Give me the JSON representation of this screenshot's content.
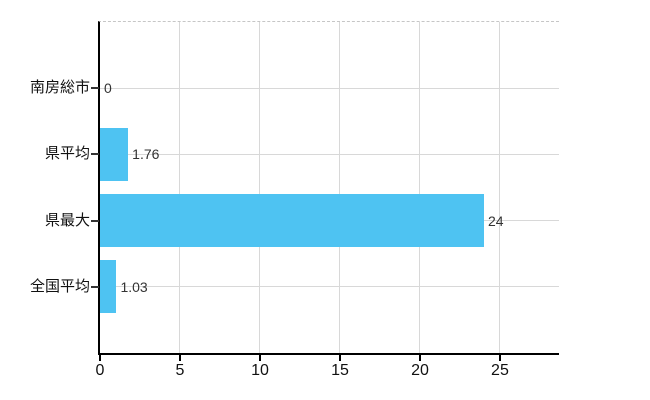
{
  "chart_data": {
    "type": "bar",
    "orientation": "horizontal",
    "title": "",
    "xlabel": "",
    "ylabel": "",
    "categories": [
      "南房総市",
      "県平均",
      "県最大",
      "全国平均"
    ],
    "values": [
      0,
      1.76,
      24,
      1.03
    ],
    "value_labels": [
      "0",
      "1.76",
      "24",
      "1.03"
    ],
    "x_ticks": [
      0,
      5,
      10,
      15,
      20,
      25
    ],
    "xlim": [
      0,
      28.69
    ],
    "grid": true,
    "legend": false,
    "bar_color": "#4ec3f2",
    "gridline_color": "#d8d8d8",
    "axis_color": "#000000",
    "top_border_color": "#c6c6c6",
    "category_label_color": "#111111",
    "value_label_color": "#333333"
  }
}
